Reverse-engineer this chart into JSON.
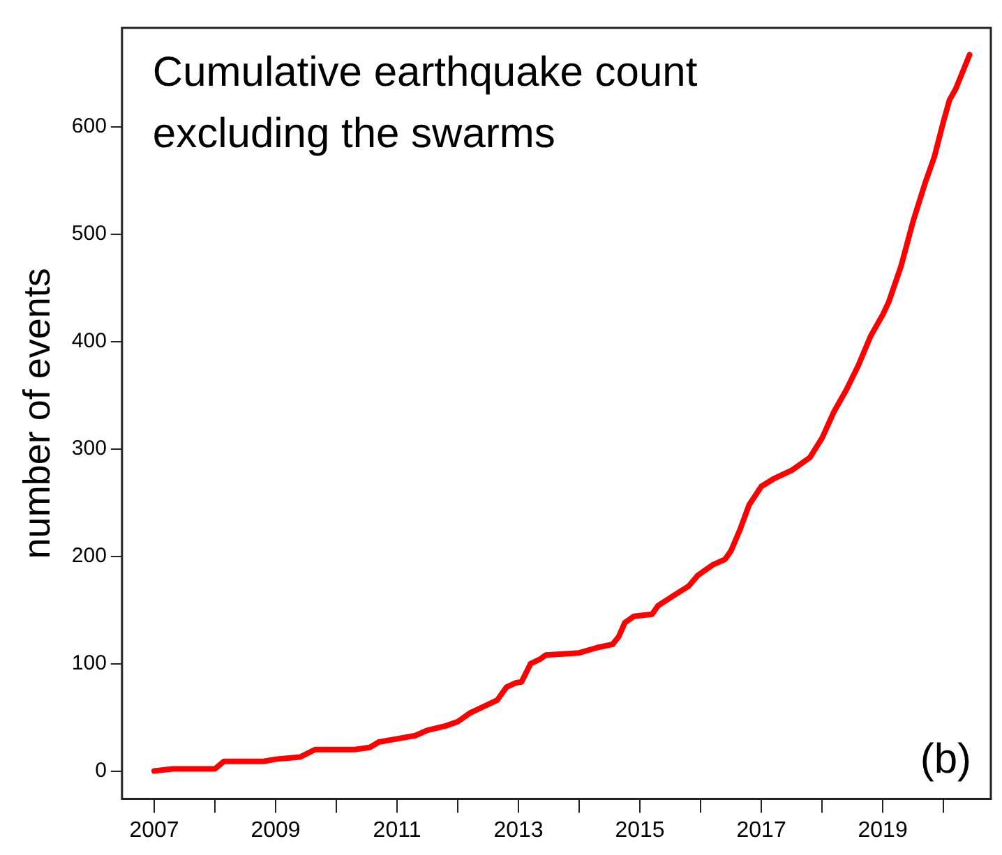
{
  "chart_data": {
    "type": "line",
    "title": "Cumulative earthquake count excluding the swarms",
    "ylabel": "number of events",
    "annotations": [
      "(b)"
    ],
    "x": [
      2007.0,
      2007.3,
      2008.0,
      2008.15,
      2008.8,
      2009.0,
      2009.4,
      2009.65,
      2010.3,
      2010.55,
      2010.7,
      2011.0,
      2011.3,
      2011.5,
      2011.8,
      2012.0,
      2012.2,
      2012.5,
      2012.65,
      2012.8,
      2012.95,
      2013.05,
      2013.2,
      2013.35,
      2013.45,
      2014.0,
      2014.3,
      2014.55,
      2014.65,
      2014.75,
      2014.9,
      2015.2,
      2015.3,
      2015.6,
      2015.8,
      2015.95,
      2016.2,
      2016.4,
      2016.5,
      2016.65,
      2016.8,
      2017.0,
      2017.2,
      2017.5,
      2017.8,
      2018.0,
      2018.2,
      2018.4,
      2018.6,
      2018.8,
      2019.0,
      2019.1,
      2019.3,
      2019.5,
      2019.7,
      2019.85,
      2020.0,
      2020.1,
      2020.2,
      2020.43
    ],
    "series": [
      {
        "color": "#ff0000",
        "values": [
          0,
          2,
          2,
          9,
          9,
          11,
          13,
          20,
          20,
          22,
          27,
          30,
          33,
          38,
          42,
          46,
          54,
          62,
          66,
          78,
          82,
          83,
          100,
          104,
          108,
          110,
          115,
          118,
          125,
          138,
          144,
          146,
          154,
          165,
          172,
          182,
          192,
          197,
          205,
          225,
          248,
          265,
          272,
          280,
          292,
          310,
          335,
          355,
          378,
          405,
          425,
          437,
          470,
          512,
          548,
          572,
          605,
          625,
          635,
          667
        ]
      }
    ],
    "xlim": [
      2006.47,
      2020.78
    ],
    "ylim": [
      -26,
      692
    ],
    "xticks": [
      2007,
      {
        "value": 2008,
        "label": null
      },
      2009,
      {
        "value": 2010,
        "label": null
      },
      2011,
      {
        "value": 2012,
        "label": null
      },
      2013,
      {
        "value": 2014,
        "label": null
      },
      2015,
      {
        "value": 2016,
        "label": null
      },
      2017,
      {
        "value": 2018,
        "label": null
      },
      2019,
      {
        "value": 2020,
        "label": null
      }
    ],
    "yticks": [
      0,
      100,
      200,
      300,
      400,
      500,
      600
    ],
    "grid": false,
    "legend": false,
    "marker": "none",
    "line_style": "solid"
  }
}
